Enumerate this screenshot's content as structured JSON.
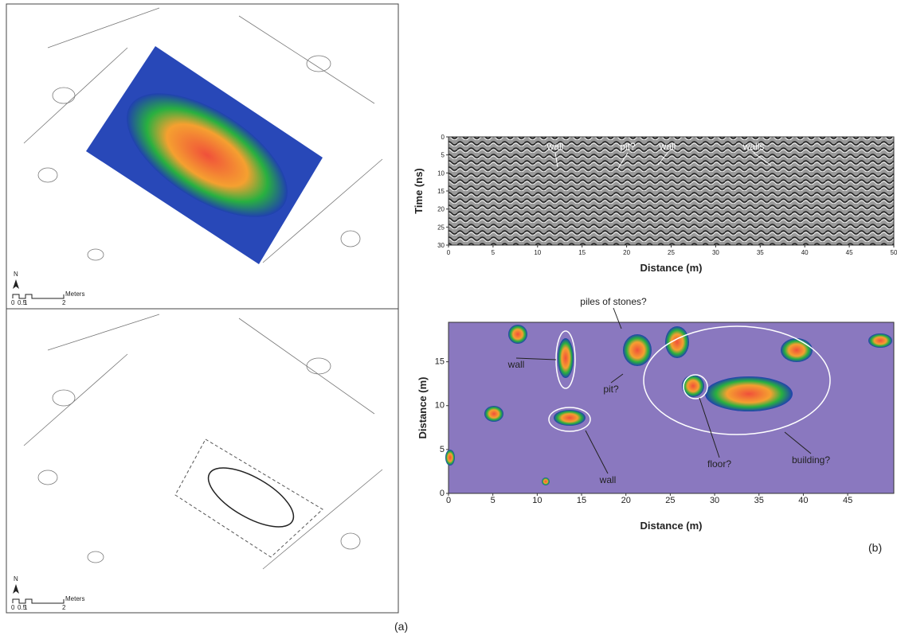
{
  "panel_a": {
    "label": "(a)",
    "north": "N",
    "scale_ticks": [
      "0",
      "0.5",
      "1",
      "2"
    ],
    "scale_unit": "Meters"
  },
  "panel_b": {
    "label": "(b)",
    "radargram": {
      "xlabel": "Distance (m)",
      "ylabel": "Time (ns)",
      "xlim": [
        0,
        50
      ],
      "ylim": [
        0,
        30
      ],
      "xticks": [
        0,
        5,
        10,
        15,
        20,
        25,
        30,
        35,
        40,
        45,
        50
      ],
      "yticks": [
        0,
        5,
        10,
        15,
        20,
        25,
        30
      ],
      "annotations": [
        "wall",
        "pit?",
        "wall",
        "walls"
      ]
    },
    "depth_slice": {
      "xlabel": "Distance (m)",
      "ylabel": "Distance (m)",
      "xlim": [
        0,
        50.2
      ],
      "ylim": [
        0,
        19.5
      ],
      "xticks": [
        0,
        5,
        10,
        15,
        20,
        25,
        30,
        35,
        40,
        45
      ],
      "yticks": [
        0,
        5,
        10,
        15
      ],
      "annotations": [
        "piles of stones?",
        "wall",
        "pit?",
        "wall",
        "floor?",
        "building?"
      ]
    }
  }
}
